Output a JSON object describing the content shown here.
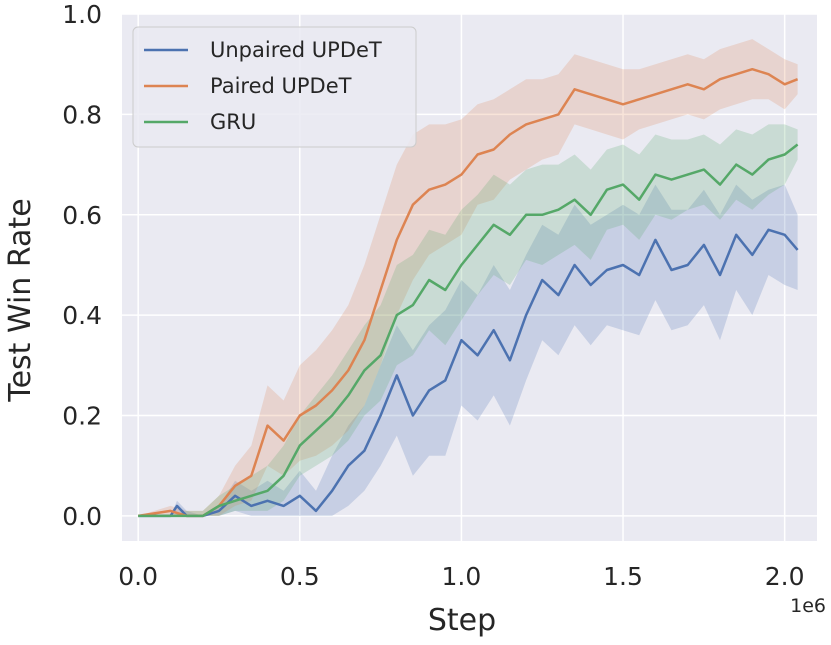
{
  "chart_data": {
    "type": "line",
    "xlabel": "Step",
    "ylabel": "Test Win Rate",
    "x_offset_label": "1e6",
    "xlim": [
      -0.05,
      2.1
    ],
    "ylim": [
      -0.05,
      1.0
    ],
    "xticks": [
      0.0,
      0.5,
      1.0,
      1.5,
      2.0
    ],
    "xtick_labels": [
      "0.0",
      "0.5",
      "1.0",
      "1.5",
      "2.0"
    ],
    "yticks": [
      0.0,
      0.2,
      0.4,
      0.6,
      0.8,
      1.0
    ],
    "ytick_labels": [
      "0.0",
      "0.2",
      "0.4",
      "0.6",
      "0.8",
      "1.0"
    ],
    "grid": true,
    "legend_position": "top-left",
    "colors": {
      "plot_background": "#eaeaf2",
      "grid": "#ffffff",
      "unpaired": "#4c72b0",
      "paired": "#dd8452",
      "gru": "#55a868"
    },
    "series": [
      {
        "name": "Unpaired UPDeT",
        "color": "#4c72b0",
        "x": [
          0.0,
          0.1,
          0.12,
          0.15,
          0.2,
          0.25,
          0.3,
          0.35,
          0.4,
          0.45,
          0.5,
          0.55,
          0.6,
          0.65,
          0.7,
          0.75,
          0.8,
          0.85,
          0.9,
          0.95,
          1.0,
          1.05,
          1.1,
          1.15,
          1.2,
          1.25,
          1.3,
          1.35,
          1.4,
          1.45,
          1.5,
          1.55,
          1.6,
          1.65,
          1.7,
          1.75,
          1.8,
          1.85,
          1.9,
          1.95,
          2.0,
          2.04
        ],
        "y": [
          0.0,
          0.0,
          0.02,
          0.0,
          0.0,
          0.01,
          0.04,
          0.02,
          0.03,
          0.02,
          0.04,
          0.01,
          0.05,
          0.1,
          0.13,
          0.2,
          0.28,
          0.2,
          0.25,
          0.27,
          0.35,
          0.32,
          0.37,
          0.31,
          0.4,
          0.47,
          0.44,
          0.5,
          0.46,
          0.49,
          0.5,
          0.48,
          0.55,
          0.49,
          0.5,
          0.54,
          0.48,
          0.56,
          0.52,
          0.57,
          0.56,
          0.53
        ],
        "upper": [
          0.0,
          0.0,
          0.03,
          0.01,
          0.0,
          0.02,
          0.07,
          0.05,
          0.07,
          0.05,
          0.09,
          0.05,
          0.12,
          0.18,
          0.22,
          0.3,
          0.38,
          0.33,
          0.38,
          0.41,
          0.47,
          0.44,
          0.5,
          0.45,
          0.52,
          0.58,
          0.56,
          0.62,
          0.58,
          0.6,
          0.62,
          0.6,
          0.66,
          0.61,
          0.61,
          0.65,
          0.6,
          0.66,
          0.63,
          0.65,
          0.66,
          0.6
        ],
        "lower": [
          0.0,
          0.0,
          0.0,
          0.0,
          0.0,
          0.0,
          0.01,
          0.0,
          0.0,
          0.0,
          0.0,
          0.0,
          0.0,
          0.02,
          0.05,
          0.1,
          0.16,
          0.08,
          0.12,
          0.12,
          0.22,
          0.19,
          0.24,
          0.18,
          0.27,
          0.35,
          0.32,
          0.38,
          0.34,
          0.38,
          0.37,
          0.36,
          0.43,
          0.37,
          0.38,
          0.42,
          0.35,
          0.45,
          0.4,
          0.48,
          0.46,
          0.45
        ]
      },
      {
        "name": "Paired UPDeT",
        "color": "#dd8452",
        "x": [
          0.0,
          0.1,
          0.15,
          0.2,
          0.25,
          0.3,
          0.35,
          0.4,
          0.45,
          0.5,
          0.55,
          0.6,
          0.65,
          0.7,
          0.75,
          0.8,
          0.85,
          0.9,
          0.95,
          1.0,
          1.05,
          1.1,
          1.15,
          1.2,
          1.25,
          1.3,
          1.35,
          1.4,
          1.45,
          1.5,
          1.55,
          1.6,
          1.65,
          1.7,
          1.75,
          1.8,
          1.85,
          1.9,
          1.95,
          2.0,
          2.04
        ],
        "y": [
          0.0,
          0.01,
          0.0,
          0.0,
          0.02,
          0.06,
          0.08,
          0.18,
          0.15,
          0.2,
          0.22,
          0.25,
          0.29,
          0.35,
          0.45,
          0.55,
          0.62,
          0.65,
          0.66,
          0.68,
          0.72,
          0.73,
          0.76,
          0.78,
          0.79,
          0.8,
          0.85,
          0.84,
          0.83,
          0.82,
          0.83,
          0.84,
          0.85,
          0.86,
          0.85,
          0.87,
          0.88,
          0.89,
          0.88,
          0.86,
          0.87
        ],
        "upper": [
          0.0,
          0.02,
          0.01,
          0.01,
          0.04,
          0.1,
          0.14,
          0.26,
          0.23,
          0.3,
          0.33,
          0.37,
          0.42,
          0.5,
          0.6,
          0.7,
          0.76,
          0.78,
          0.78,
          0.79,
          0.82,
          0.83,
          0.85,
          0.87,
          0.87,
          0.88,
          0.92,
          0.91,
          0.9,
          0.89,
          0.89,
          0.9,
          0.91,
          0.92,
          0.91,
          0.93,
          0.94,
          0.95,
          0.93,
          0.91,
          0.9
        ],
        "lower": [
          0.0,
          0.0,
          0.0,
          0.0,
          0.0,
          0.02,
          0.03,
          0.1,
          0.08,
          0.11,
          0.12,
          0.14,
          0.17,
          0.22,
          0.3,
          0.4,
          0.47,
          0.52,
          0.54,
          0.56,
          0.62,
          0.63,
          0.67,
          0.69,
          0.71,
          0.72,
          0.78,
          0.77,
          0.76,
          0.75,
          0.77,
          0.78,
          0.79,
          0.8,
          0.79,
          0.81,
          0.82,
          0.83,
          0.83,
          0.81,
          0.84
        ]
      },
      {
        "name": "GRU",
        "color": "#55a868",
        "x": [
          0.0,
          0.1,
          0.15,
          0.2,
          0.25,
          0.3,
          0.35,
          0.4,
          0.45,
          0.5,
          0.55,
          0.6,
          0.65,
          0.7,
          0.75,
          0.8,
          0.85,
          0.9,
          0.95,
          1.0,
          1.05,
          1.1,
          1.15,
          1.2,
          1.25,
          1.3,
          1.35,
          1.4,
          1.45,
          1.5,
          1.55,
          1.6,
          1.65,
          1.7,
          1.75,
          1.8,
          1.85,
          1.9,
          1.95,
          2.0,
          2.04
        ],
        "y": [
          0.0,
          0.0,
          0.0,
          0.0,
          0.02,
          0.03,
          0.04,
          0.05,
          0.08,
          0.14,
          0.17,
          0.2,
          0.24,
          0.29,
          0.32,
          0.4,
          0.42,
          0.47,
          0.45,
          0.5,
          0.54,
          0.58,
          0.56,
          0.6,
          0.6,
          0.61,
          0.63,
          0.6,
          0.65,
          0.66,
          0.63,
          0.68,
          0.67,
          0.68,
          0.69,
          0.66,
          0.7,
          0.68,
          0.71,
          0.72,
          0.74
        ],
        "upper": [
          0.0,
          0.0,
          0.01,
          0.01,
          0.04,
          0.06,
          0.08,
          0.1,
          0.14,
          0.2,
          0.24,
          0.28,
          0.33,
          0.38,
          0.42,
          0.5,
          0.52,
          0.57,
          0.56,
          0.61,
          0.64,
          0.68,
          0.66,
          0.69,
          0.7,
          0.7,
          0.72,
          0.69,
          0.73,
          0.74,
          0.72,
          0.76,
          0.75,
          0.75,
          0.76,
          0.74,
          0.77,
          0.76,
          0.78,
          0.78,
          0.77
        ],
        "lower": [
          0.0,
          0.0,
          0.0,
          0.0,
          0.0,
          0.01,
          0.01,
          0.01,
          0.03,
          0.08,
          0.1,
          0.12,
          0.15,
          0.2,
          0.23,
          0.3,
          0.32,
          0.37,
          0.34,
          0.39,
          0.44,
          0.48,
          0.46,
          0.51,
          0.5,
          0.52,
          0.54,
          0.51,
          0.57,
          0.58,
          0.55,
          0.6,
          0.59,
          0.61,
          0.62,
          0.59,
          0.63,
          0.61,
          0.64,
          0.66,
          0.71
        ]
      }
    ]
  }
}
